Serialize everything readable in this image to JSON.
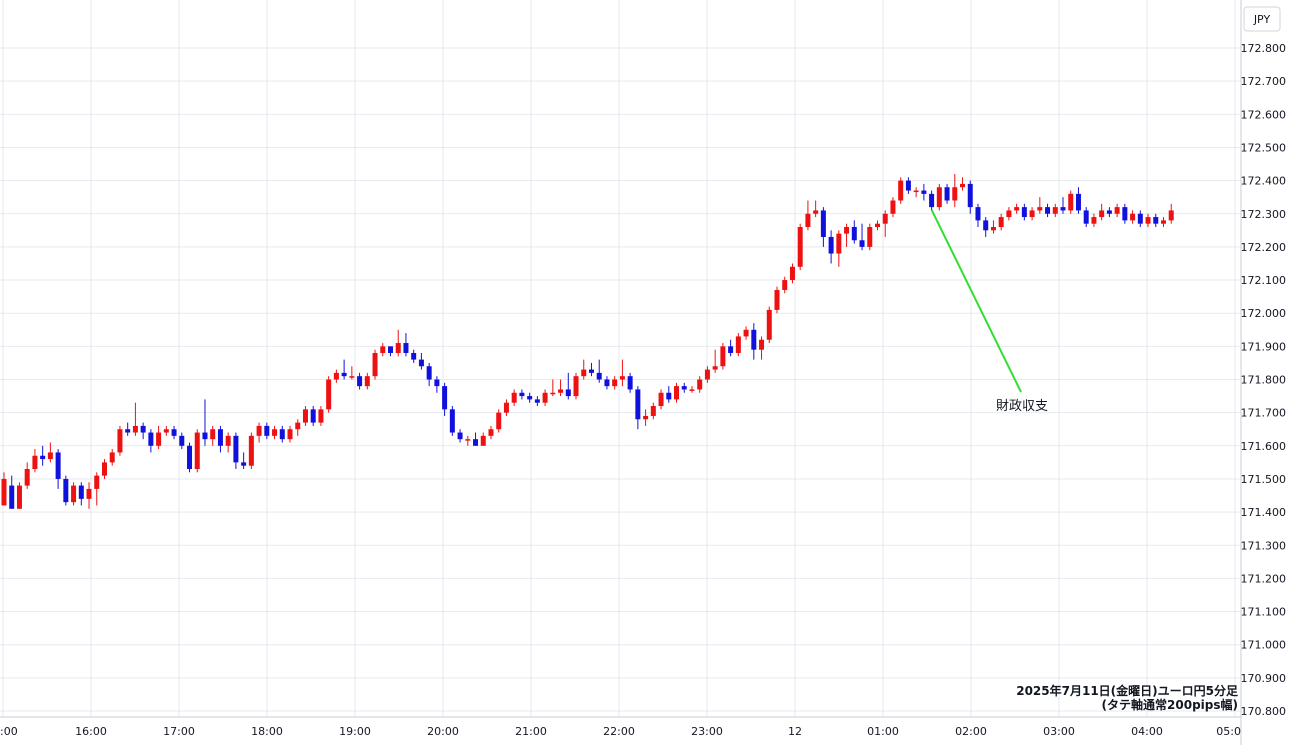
{
  "chart_data": {
    "type": "candlestick",
    "currency_label": "JPY",
    "note_lines": [
      "2025年7月11日(金曜日)ユーロ円5分足",
      "(タテ軸通常200pips幅)"
    ],
    "y_ticks": [
      "172.800",
      "172.700",
      "172.600",
      "172.500",
      "172.400",
      "172.300",
      "172.200",
      "172.100",
      "172.000",
      "171.900",
      "171.800",
      "171.700",
      "171.600",
      "171.500",
      "171.400",
      "171.300",
      "171.200",
      "171.100",
      "171.000",
      "170.900",
      "170.800"
    ],
    "x_ticks": [
      ":00",
      "16:00",
      "17:00",
      "18:00",
      "19:00",
      "20:00",
      "21:00",
      "22:00",
      "23:00",
      "12",
      "01:00",
      "02:00",
      "03:00",
      "04:00",
      "05:0"
    ],
    "ylim": [
      170.8,
      172.8
    ],
    "annotation": {
      "text": "財政収支",
      "index": 120,
      "price": 172.33
    },
    "colors": {
      "up": "#ee1111",
      "down": "#1111dd",
      "grid": "#e6e9ef",
      "annotation_line": "#33dd33"
    },
    "candles": [
      [
        171.42,
        171.5,
        171.42,
        171.52
      ],
      [
        171.48,
        171.41,
        171.41,
        171.51
      ],
      [
        171.41,
        171.48,
        171.41,
        171.49
      ],
      [
        171.48,
        171.53,
        171.47,
        171.55
      ],
      [
        171.53,
        171.57,
        171.52,
        171.59
      ],
      [
        171.57,
        171.56,
        171.54,
        171.6
      ],
      [
        171.56,
        171.58,
        171.55,
        171.61
      ],
      [
        171.58,
        171.5,
        171.47,
        171.59
      ],
      [
        171.5,
        171.43,
        171.42,
        171.51
      ],
      [
        171.43,
        171.48,
        171.42,
        171.49
      ],
      [
        171.48,
        171.44,
        171.42,
        171.49
      ],
      [
        171.44,
        171.47,
        171.41,
        171.49
      ],
      [
        171.47,
        171.51,
        171.42,
        171.52
      ],
      [
        171.51,
        171.55,
        171.5,
        171.56
      ],
      [
        171.55,
        171.58,
        171.54,
        171.59
      ],
      [
        171.58,
        171.65,
        171.57,
        171.66
      ],
      [
        171.65,
        171.64,
        171.63,
        171.67
      ],
      [
        171.64,
        171.66,
        171.63,
        171.73
      ],
      [
        171.66,
        171.64,
        171.62,
        171.67
      ],
      [
        171.64,
        171.6,
        171.58,
        171.65
      ],
      [
        171.6,
        171.64,
        171.59,
        171.66
      ],
      [
        171.64,
        171.65,
        171.63,
        171.66
      ],
      [
        171.65,
        171.63,
        171.62,
        171.66
      ],
      [
        171.63,
        171.6,
        171.59,
        171.64
      ],
      [
        171.6,
        171.53,
        171.52,
        171.61
      ],
      [
        171.53,
        171.64,
        171.52,
        171.65
      ],
      [
        171.64,
        171.62,
        171.6,
        171.74
      ],
      [
        171.62,
        171.65,
        171.6,
        171.66
      ],
      [
        171.65,
        171.6,
        171.58,
        171.66
      ],
      [
        171.6,
        171.63,
        171.58,
        171.64
      ],
      [
        171.63,
        171.55,
        171.53,
        171.64
      ],
      [
        171.55,
        171.54,
        171.53,
        171.58
      ],
      [
        171.54,
        171.63,
        171.53,
        171.64
      ],
      [
        171.63,
        171.66,
        171.61,
        171.67
      ],
      [
        171.66,
        171.63,
        171.62,
        171.67
      ],
      [
        171.63,
        171.65,
        171.62,
        171.66
      ],
      [
        171.65,
        171.62,
        171.61,
        171.66
      ],
      [
        171.62,
        171.65,
        171.61,
        171.66
      ],
      [
        171.65,
        171.67,
        171.63,
        171.68
      ],
      [
        171.67,
        171.71,
        171.66,
        171.72
      ],
      [
        171.71,
        171.67,
        171.66,
        171.72
      ],
      [
        171.67,
        171.71,
        171.66,
        171.72
      ],
      [
        171.71,
        171.8,
        171.7,
        171.81
      ],
      [
        171.8,
        171.82,
        171.79,
        171.83
      ],
      [
        171.82,
        171.81,
        171.8,
        171.86
      ],
      [
        171.81,
        171.81,
        171.8,
        171.84
      ],
      [
        171.81,
        171.78,
        171.77,
        171.82
      ],
      [
        171.78,
        171.81,
        171.77,
        171.82
      ],
      [
        171.81,
        171.88,
        171.8,
        171.89
      ],
      [
        171.88,
        171.9,
        171.87,
        171.91
      ],
      [
        171.9,
        171.88,
        171.87,
        171.9
      ],
      [
        171.88,
        171.91,
        171.87,
        171.95
      ],
      [
        171.91,
        171.88,
        171.87,
        171.94
      ],
      [
        171.88,
        171.86,
        171.85,
        171.89
      ],
      [
        171.86,
        171.84,
        171.83,
        171.88
      ],
      [
        171.84,
        171.8,
        171.78,
        171.85
      ],
      [
        171.8,
        171.78,
        171.76,
        171.81
      ],
      [
        171.78,
        171.71,
        171.69,
        171.79
      ],
      [
        171.71,
        171.64,
        171.63,
        171.72
      ],
      [
        171.64,
        171.62,
        171.61,
        171.65
      ],
      [
        171.62,
        171.62,
        171.6,
        171.63
      ],
      [
        171.62,
        171.6,
        171.6,
        171.64
      ],
      [
        171.6,
        171.63,
        171.6,
        171.64
      ],
      [
        171.63,
        171.65,
        171.62,
        171.66
      ],
      [
        171.65,
        171.7,
        171.64,
        171.71
      ],
      [
        171.7,
        171.73,
        171.69,
        171.74
      ],
      [
        171.73,
        171.76,
        171.72,
        171.77
      ],
      [
        171.76,
        171.75,
        171.74,
        171.77
      ],
      [
        171.75,
        171.74,
        171.73,
        171.76
      ],
      [
        171.74,
        171.73,
        171.72,
        171.75
      ],
      [
        171.73,
        171.76,
        171.72,
        171.77
      ],
      [
        171.76,
        171.76,
        171.75,
        171.8
      ],
      [
        171.76,
        171.77,
        171.75,
        171.8
      ],
      [
        171.77,
        171.75,
        171.74,
        171.82
      ],
      [
        171.75,
        171.81,
        171.74,
        171.82
      ],
      [
        171.81,
        171.83,
        171.8,
        171.86
      ],
      [
        171.83,
        171.82,
        171.81,
        171.85
      ],
      [
        171.82,
        171.8,
        171.79,
        171.86
      ],
      [
        171.8,
        171.78,
        171.77,
        171.81
      ],
      [
        171.78,
        171.8,
        171.77,
        171.81
      ],
      [
        171.8,
        171.81,
        171.78,
        171.86
      ],
      [
        171.81,
        171.77,
        171.76,
        171.82
      ],
      [
        171.77,
        171.68,
        171.65,
        171.78
      ],
      [
        171.68,
        171.69,
        171.66,
        171.71
      ],
      [
        171.69,
        171.72,
        171.68,
        171.73
      ],
      [
        171.72,
        171.76,
        171.71,
        171.77
      ],
      [
        171.76,
        171.74,
        171.73,
        171.78
      ],
      [
        171.74,
        171.78,
        171.73,
        171.79
      ],
      [
        171.78,
        171.77,
        171.76,
        171.79
      ],
      [
        171.77,
        171.77,
        171.76,
        171.78
      ],
      [
        171.77,
        171.8,
        171.76,
        171.81
      ],
      [
        171.8,
        171.83,
        171.79,
        171.84
      ],
      [
        171.83,
        171.84,
        171.82,
        171.89
      ],
      [
        171.84,
        171.9,
        171.83,
        171.91
      ],
      [
        171.9,
        171.88,
        171.87,
        171.92
      ],
      [
        171.88,
        171.93,
        171.87,
        171.94
      ],
      [
        171.93,
        171.95,
        171.92,
        171.96
      ],
      [
        171.95,
        171.89,
        171.86,
        171.97
      ],
      [
        171.89,
        171.92,
        171.86,
        171.93
      ],
      [
        171.92,
        172.01,
        171.91,
        172.02
      ],
      [
        172.01,
        172.07,
        172.0,
        172.08
      ],
      [
        172.07,
        172.1,
        172.06,
        172.11
      ],
      [
        172.1,
        172.14,
        172.09,
        172.15
      ],
      [
        172.14,
        172.26,
        172.13,
        172.27
      ],
      [
        172.26,
        172.3,
        172.25,
        172.34
      ],
      [
        172.3,
        172.31,
        172.29,
        172.34
      ],
      [
        172.31,
        172.23,
        172.2,
        172.32
      ],
      [
        172.23,
        172.18,
        172.15,
        172.25
      ],
      [
        172.18,
        172.24,
        172.14,
        172.25
      ],
      [
        172.24,
        172.26,
        172.2,
        172.27
      ],
      [
        172.26,
        172.22,
        172.21,
        172.28
      ],
      [
        172.22,
        172.2,
        172.19,
        172.27
      ],
      [
        172.2,
        172.26,
        172.19,
        172.27
      ],
      [
        172.26,
        172.27,
        172.25,
        172.28
      ],
      [
        172.27,
        172.3,
        172.23,
        172.31
      ],
      [
        172.3,
        172.34,
        172.29,
        172.35
      ],
      [
        172.34,
        172.4,
        172.33,
        172.41
      ],
      [
        172.4,
        172.37,
        172.36,
        172.41
      ],
      [
        172.37,
        172.37,
        172.35,
        172.38
      ],
      [
        172.37,
        172.36,
        172.34,
        172.39
      ],
      [
        172.36,
        172.32,
        172.31,
        172.37
      ],
      [
        172.32,
        172.38,
        172.31,
        172.39
      ],
      [
        172.38,
        172.34,
        172.33,
        172.39
      ],
      [
        172.34,
        172.38,
        172.32,
        172.42
      ],
      [
        172.38,
        172.39,
        172.37,
        172.41
      ],
      [
        172.39,
        172.32,
        172.3,
        172.4
      ],
      [
        172.32,
        172.28,
        172.26,
        172.33
      ],
      [
        172.28,
        172.25,
        172.23,
        172.29
      ],
      [
        172.25,
        172.26,
        172.24,
        172.28
      ],
      [
        172.26,
        172.29,
        172.25,
        172.3
      ],
      [
        172.29,
        172.31,
        172.28,
        172.32
      ],
      [
        172.31,
        172.32,
        172.3,
        172.33
      ],
      [
        172.32,
        172.29,
        172.28,
        172.33
      ],
      [
        172.29,
        172.31,
        172.28,
        172.32
      ],
      [
        172.31,
        172.32,
        172.3,
        172.35
      ],
      [
        172.32,
        172.3,
        172.29,
        172.33
      ],
      [
        172.3,
        172.32,
        172.29,
        172.33
      ],
      [
        172.32,
        172.31,
        172.3,
        172.35
      ],
      [
        172.31,
        172.36,
        172.3,
        172.37
      ],
      [
        172.36,
        172.31,
        172.3,
        172.38
      ],
      [
        172.31,
        172.27,
        172.26,
        172.32
      ],
      [
        172.27,
        172.29,
        172.26,
        172.3
      ],
      [
        172.29,
        172.31,
        172.28,
        172.33
      ],
      [
        172.31,
        172.3,
        172.29,
        172.32
      ],
      [
        172.3,
        172.32,
        172.29,
        172.33
      ],
      [
        172.32,
        172.28,
        172.27,
        172.33
      ],
      [
        172.28,
        172.3,
        172.27,
        172.31
      ],
      [
        172.3,
        172.27,
        172.26,
        172.31
      ],
      [
        172.27,
        172.29,
        172.26,
        172.3
      ],
      [
        172.29,
        172.27,
        172.26,
        172.3
      ],
      [
        172.27,
        172.28,
        172.26,
        172.29
      ],
      [
        172.28,
        172.31,
        172.27,
        172.33
      ]
    ]
  }
}
